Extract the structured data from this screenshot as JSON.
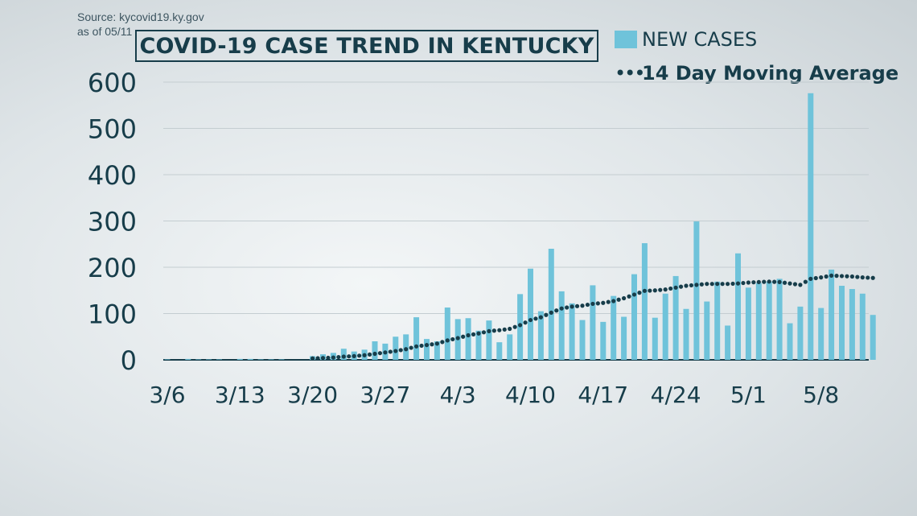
{
  "source": {
    "line1": "Source: kycovid19.ky.gov",
    "line2": "as of 05/11"
  },
  "chart_data": {
    "type": "bar",
    "title": "COVID-19 CASE TREND IN KENTUCKY",
    "legend_position": "top-right",
    "grid": true,
    "ylim": [
      0,
      600
    ],
    "yticks": [
      "0",
      "100",
      "200",
      "300",
      "400",
      "500",
      "600"
    ],
    "xticks": [
      {
        "label": "3/6",
        "day": 0
      },
      {
        "label": "3/13",
        "day": 7
      },
      {
        "label": "3/20",
        "day": 14
      },
      {
        "label": "3/27",
        "day": 21
      },
      {
        "label": "4/3",
        "day": 28
      },
      {
        "label": "4/10",
        "day": 35
      },
      {
        "label": "4/17",
        "day": 42
      },
      {
        "label": "4/24",
        "day": 49
      },
      {
        "label": "5/1",
        "day": 56
      },
      {
        "label": "5/8",
        "day": 63
      }
    ],
    "series": [
      {
        "name": "NEW CASES",
        "kind": "bar",
        "color": "#6fc3da",
        "values": [
          1,
          0,
          2,
          1,
          1,
          1,
          0,
          2,
          2,
          1,
          1,
          1,
          0,
          0,
          8,
          12,
          15,
          24,
          18,
          22,
          40,
          35,
          50,
          55,
          92,
          45,
          40,
          113,
          88,
          90,
          63,
          85,
          38,
          55,
          142,
          197,
          105,
          240,
          148,
          122,
          86,
          161,
          82,
          138,
          93,
          185,
          252,
          91,
          143,
          181,
          110,
          299,
          126,
          169,
          74,
          230,
          156,
          166,
          169,
          175,
          79,
          115,
          576,
          112,
          195,
          160,
          153,
          143,
          97
        ]
      },
      {
        "name": "14 Day Moving Average",
        "kind": "dotted-line",
        "color": "#173d4a",
        "values": [
          null,
          null,
          null,
          null,
          null,
          null,
          null,
          null,
          null,
          null,
          null,
          null,
          null,
          null,
          3,
          4,
          5,
          7,
          8,
          10,
          13,
          16,
          19,
          23,
          29,
          32,
          35,
          42,
          47,
          53,
          57,
          62,
          64,
          67,
          75,
          86,
          92,
          102,
          111,
          115,
          117,
          121,
          123,
          127,
          133,
          141,
          149,
          150,
          152,
          156,
          160,
          162,
          164,
          164,
          164,
          165,
          167,
          168,
          169,
          168,
          165,
          162,
          175,
          178,
          182,
          181,
          180,
          178,
          177
        ]
      }
    ]
  }
}
